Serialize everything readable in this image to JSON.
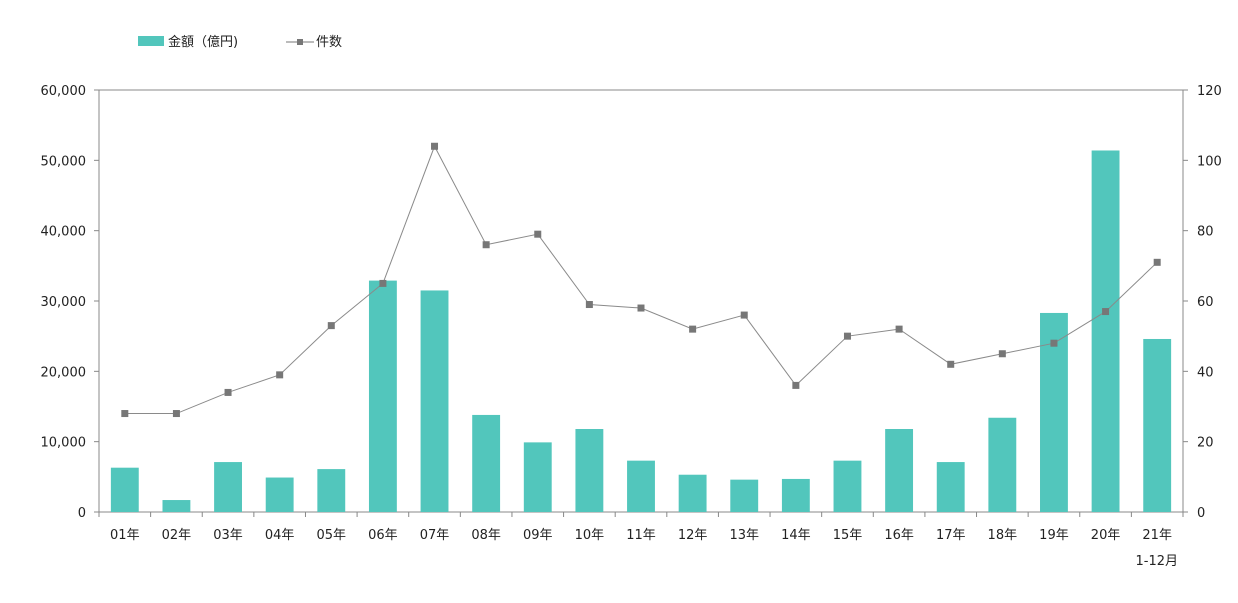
{
  "chart_data": {
    "type": "bar",
    "categories": [
      "01年",
      "02年",
      "03年",
      "04年",
      "05年",
      "06年",
      "07年",
      "08年",
      "09年",
      "10年",
      "11年",
      "12年",
      "13年",
      "14年",
      "15年",
      "16年",
      "17年",
      "18年",
      "19年",
      "20年",
      "21年"
    ],
    "series": [
      {
        "name": "金額（億円)",
        "type": "bar",
        "axis": "left",
        "color": "#52c6bc",
        "values": [
          6300,
          1700,
          7100,
          4900,
          6100,
          32900,
          31500,
          13800,
          9900,
          11800,
          7300,
          5300,
          4600,
          4700,
          7300,
          11800,
          7100,
          13400,
          28300,
          51400,
          24600
        ]
      },
      {
        "name": "件数",
        "type": "line",
        "axis": "right",
        "color": "#777777",
        "marker": "square",
        "values": [
          28,
          28,
          34,
          39,
          53,
          65,
          104,
          76,
          79,
          59,
          58,
          52,
          56,
          36,
          50,
          52,
          42,
          45,
          48,
          57,
          71
        ]
      }
    ],
    "y_left": {
      "ylim": [
        0,
        60000
      ],
      "ticks": [
        "0",
        "10,000",
        "20,000",
        "30,000",
        "40,000",
        "50,000",
        "60,000"
      ]
    },
    "y_right": {
      "ylim": [
        0,
        120
      ],
      "ticks": [
        "0",
        "20",
        "40",
        "60",
        "80",
        "100",
        "120"
      ]
    },
    "note": "1-12月",
    "legend": {
      "placement": "top-left"
    },
    "grid": false
  }
}
